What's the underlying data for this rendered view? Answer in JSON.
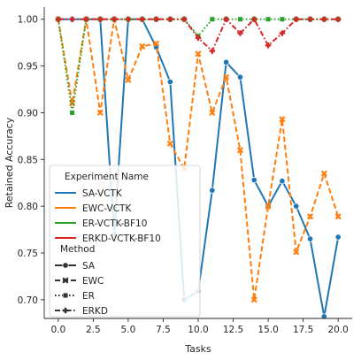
{
  "chart_data": {
    "type": "line",
    "title": "",
    "xlabel": "Tasks",
    "ylabel": "Retained Accuracy",
    "xlim": [
      -1,
      21
    ],
    "ylim": [
      0.68,
      1.013
    ],
    "xticks": [
      0.0,
      2.5,
      5.0,
      7.5,
      10.0,
      12.5,
      15.0,
      17.5,
      20.0
    ],
    "xtick_labels": [
      "0.0",
      "2.5",
      "5.0",
      "7.5",
      "10.0",
      "12.5",
      "15.0",
      "17.5",
      "20.0"
    ],
    "yticks": [
      0.7,
      0.75,
      0.8,
      0.85,
      0.9,
      0.95,
      1.0
    ],
    "ytick_labels": [
      "0.70",
      "0.75",
      "0.80",
      "0.85",
      "0.90",
      "0.95",
      "1.00"
    ],
    "grid": false,
    "legend": {
      "placement": "lower-left",
      "title": "Experiment Name",
      "style_title": "Method",
      "styles": [
        {
          "name": "SA",
          "dash": "solid",
          "marker": "circle"
        },
        {
          "name": "EWC",
          "dash": "dashed",
          "marker": "x"
        },
        {
          "name": "ER",
          "dash": "dotted",
          "marker": "square"
        },
        {
          "name": "ERKD",
          "dash": "dashdot",
          "marker": "plus"
        }
      ]
    },
    "series": [
      {
        "name": "SA-VCTK",
        "color": "#1f77b4",
        "dash": "solid",
        "marker": "circle",
        "x": [
          0,
          1,
          2,
          3,
          4,
          5,
          6,
          7,
          8,
          9,
          10,
          11,
          12,
          13,
          14,
          15,
          16,
          17,
          18,
          19,
          20
        ],
        "values": [
          1.0,
          1.0,
          1.0,
          1.0,
          0.77,
          1.0,
          1.0,
          0.97,
          0.933,
          0.7,
          0.709,
          0.817,
          0.954,
          0.938,
          0.828,
          0.8,
          0.827,
          0.8,
          0.765,
          0.682,
          0.767
        ]
      },
      {
        "name": "EWC-VCTK",
        "color": "#ff7f0e",
        "dash": "dashed",
        "marker": "x",
        "x": [
          0,
          1,
          2,
          3,
          4,
          5,
          6,
          7,
          8,
          9,
          10,
          11,
          12,
          13,
          14,
          15,
          16,
          17,
          18,
          19,
          20
        ],
        "values": [
          1.0,
          0.91,
          1.0,
          0.9,
          1.0,
          0.935,
          0.971,
          0.974,
          0.867,
          0.84,
          0.963,
          0.9,
          0.938,
          0.86,
          0.7,
          0.8,
          0.893,
          0.751,
          0.789,
          0.835,
          0.789
        ]
      },
      {
        "name": "ER-VCTK-BF10",
        "color": "#2ca02c",
        "dash": "dotted",
        "marker": "square",
        "x": [
          0,
          1,
          2,
          3,
          4,
          5,
          6,
          7,
          8,
          9,
          10,
          11,
          12,
          13,
          14,
          15,
          16,
          17,
          18,
          19,
          20
        ],
        "values": [
          1.0,
          0.9,
          1.0,
          1.0,
          1.0,
          1.0,
          1.0,
          1.0,
          1.0,
          1.0,
          0.982,
          1.0,
          1.0,
          1.0,
          1.0,
          1.0,
          1.0,
          1.0,
          1.0,
          1.0,
          1.0
        ]
      },
      {
        "name": "ERKD-VCTK-BF10",
        "color": "#d62728",
        "dash": "dashdot",
        "marker": "plus",
        "x": [
          0,
          1,
          2,
          3,
          4,
          5,
          6,
          7,
          8,
          9,
          10,
          11,
          12,
          13,
          14,
          15,
          16,
          17,
          18,
          19,
          20
        ],
        "values": [
          1.0,
          1.0,
          1.0,
          1.0,
          1.0,
          1.0,
          1.0,
          1.0,
          1.0,
          1.0,
          0.98,
          0.966,
          1.0,
          0.985,
          1.0,
          0.972,
          0.985,
          1.0,
          1.0,
          1.0,
          1.0
        ]
      }
    ]
  }
}
